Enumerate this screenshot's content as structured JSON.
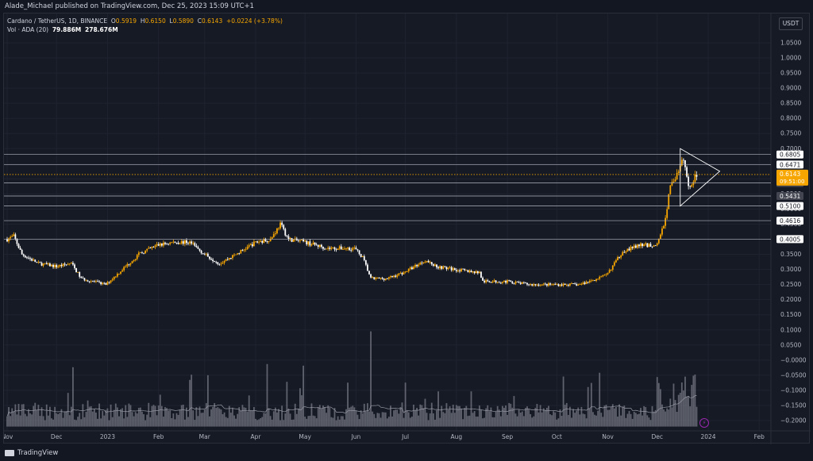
{
  "header": {
    "published": "Alade_Michael published on TradingView.com, Dec 25, 2023 15:09 UTC+1"
  },
  "legend": {
    "symbol": "Cardano / TetherUS, 1D, BINANCE",
    "open_label": "O",
    "open": "0.5919",
    "high_label": "H",
    "high": "0.6150",
    "low_label": "L",
    "low": "0.5890",
    "close_label": "C",
    "close": "0.6143",
    "change": "+0.0224 (+3.78%)",
    "volume_label": "Vol · ADA (20)",
    "volume": "79.886M",
    "volume_ma": "278.676M"
  },
  "currency": "USDT",
  "footer": {
    "logo": "TradingView"
  },
  "chart_data": {
    "type": "candlestick",
    "xlabel": "",
    "ylabel": "",
    "y_ticks": [
      "1.0500",
      "1.0000",
      "0.9500",
      "0.9000",
      "0.8500",
      "0.8000",
      "0.7500",
      "0.7000",
      "0.6500",
      "0.6000",
      "0.5500",
      "0.5000",
      "0.4500",
      "0.4000",
      "0.3500",
      "0.3000",
      "0.2500",
      "0.2000",
      "0.1500",
      "0.1000",
      "0.0500",
      "−0.0000",
      "−0.0500",
      "−0.1000",
      "−0.1500",
      "−0.2000"
    ],
    "ylim": [
      -0.22,
      1.08
    ],
    "x_ticks": [
      "Nov",
      "Dec",
      "2023",
      "Feb",
      "Mar",
      "Apr",
      "May",
      "Jun",
      "Jul",
      "Aug",
      "Sep",
      "Oct",
      "Nov",
      "Dec",
      "2024",
      "Feb"
    ],
    "price_path": [
      [
        "2022-11-01",
        0.4
      ],
      [
        "2022-11-05",
        0.41
      ],
      [
        "2022-11-10",
        0.35
      ],
      [
        "2022-11-20",
        0.32
      ],
      [
        "2022-12-01",
        0.31
      ],
      [
        "2022-12-10",
        0.32
      ],
      [
        "2022-12-16",
        0.27
      ],
      [
        "2022-12-31",
        0.25
      ],
      [
        "2023-01-10",
        0.3
      ],
      [
        "2023-01-20",
        0.35
      ],
      [
        "2023-01-31",
        0.38
      ],
      [
        "2023-02-10",
        0.39
      ],
      [
        "2023-02-20",
        0.39
      ],
      [
        "2023-03-01",
        0.35
      ],
      [
        "2023-03-10",
        0.32
      ],
      [
        "2023-03-20",
        0.35
      ],
      [
        "2023-04-01",
        0.39
      ],
      [
        "2023-04-10",
        0.4
      ],
      [
        "2023-04-16",
        0.45
      ],
      [
        "2023-04-21",
        0.4
      ],
      [
        "2023-05-01",
        0.39
      ],
      [
        "2023-05-15",
        0.37
      ],
      [
        "2023-05-31",
        0.37
      ],
      [
        "2023-06-05",
        0.34
      ],
      [
        "2023-06-10",
        0.27
      ],
      [
        "2023-06-20",
        0.27
      ],
      [
        "2023-06-30",
        0.29
      ],
      [
        "2023-07-13",
        0.33
      ],
      [
        "2023-07-20",
        0.31
      ],
      [
        "2023-07-31",
        0.3
      ],
      [
        "2023-08-15",
        0.29
      ],
      [
        "2023-08-17",
        0.26
      ],
      [
        "2023-09-01",
        0.26
      ],
      [
        "2023-09-15",
        0.25
      ],
      [
        "2023-10-01",
        0.25
      ],
      [
        "2023-10-15",
        0.25
      ],
      [
        "2023-10-31",
        0.28
      ],
      [
        "2023-11-05",
        0.32
      ],
      [
        "2023-11-10",
        0.36
      ],
      [
        "2023-11-20",
        0.38
      ],
      [
        "2023-11-30",
        0.38
      ],
      [
        "2023-12-03",
        0.41
      ],
      [
        "2023-12-06",
        0.47
      ],
      [
        "2023-12-09",
        0.58
      ],
      [
        "2023-12-14",
        0.62
      ],
      [
        "2023-12-17",
        0.67
      ],
      [
        "2023-12-20",
        0.57
      ],
      [
        "2023-12-25",
        0.6143
      ]
    ],
    "horizontal_levels": [
      "0.6805",
      "0.6471",
      "0.5862",
      "0.5431",
      "0.5100",
      "0.4616",
      "0.4005"
    ],
    "current_price": "0.6143",
    "countdown": "09:51:00",
    "triangle_pattern": {
      "apex_date": "2024-01-08",
      "top": 0.7,
      "bottom": 0.51
    },
    "volume_bars_note": "Vol · ADA (20)",
    "colors": {
      "up": "#f7a600",
      "down": "#ffffff",
      "level": "#b2b5be",
      "price": "#f7a600",
      "volume": "#787b86",
      "volume_ma": "#9598a1",
      "background": "#161a25",
      "grid": "#232632"
    }
  }
}
